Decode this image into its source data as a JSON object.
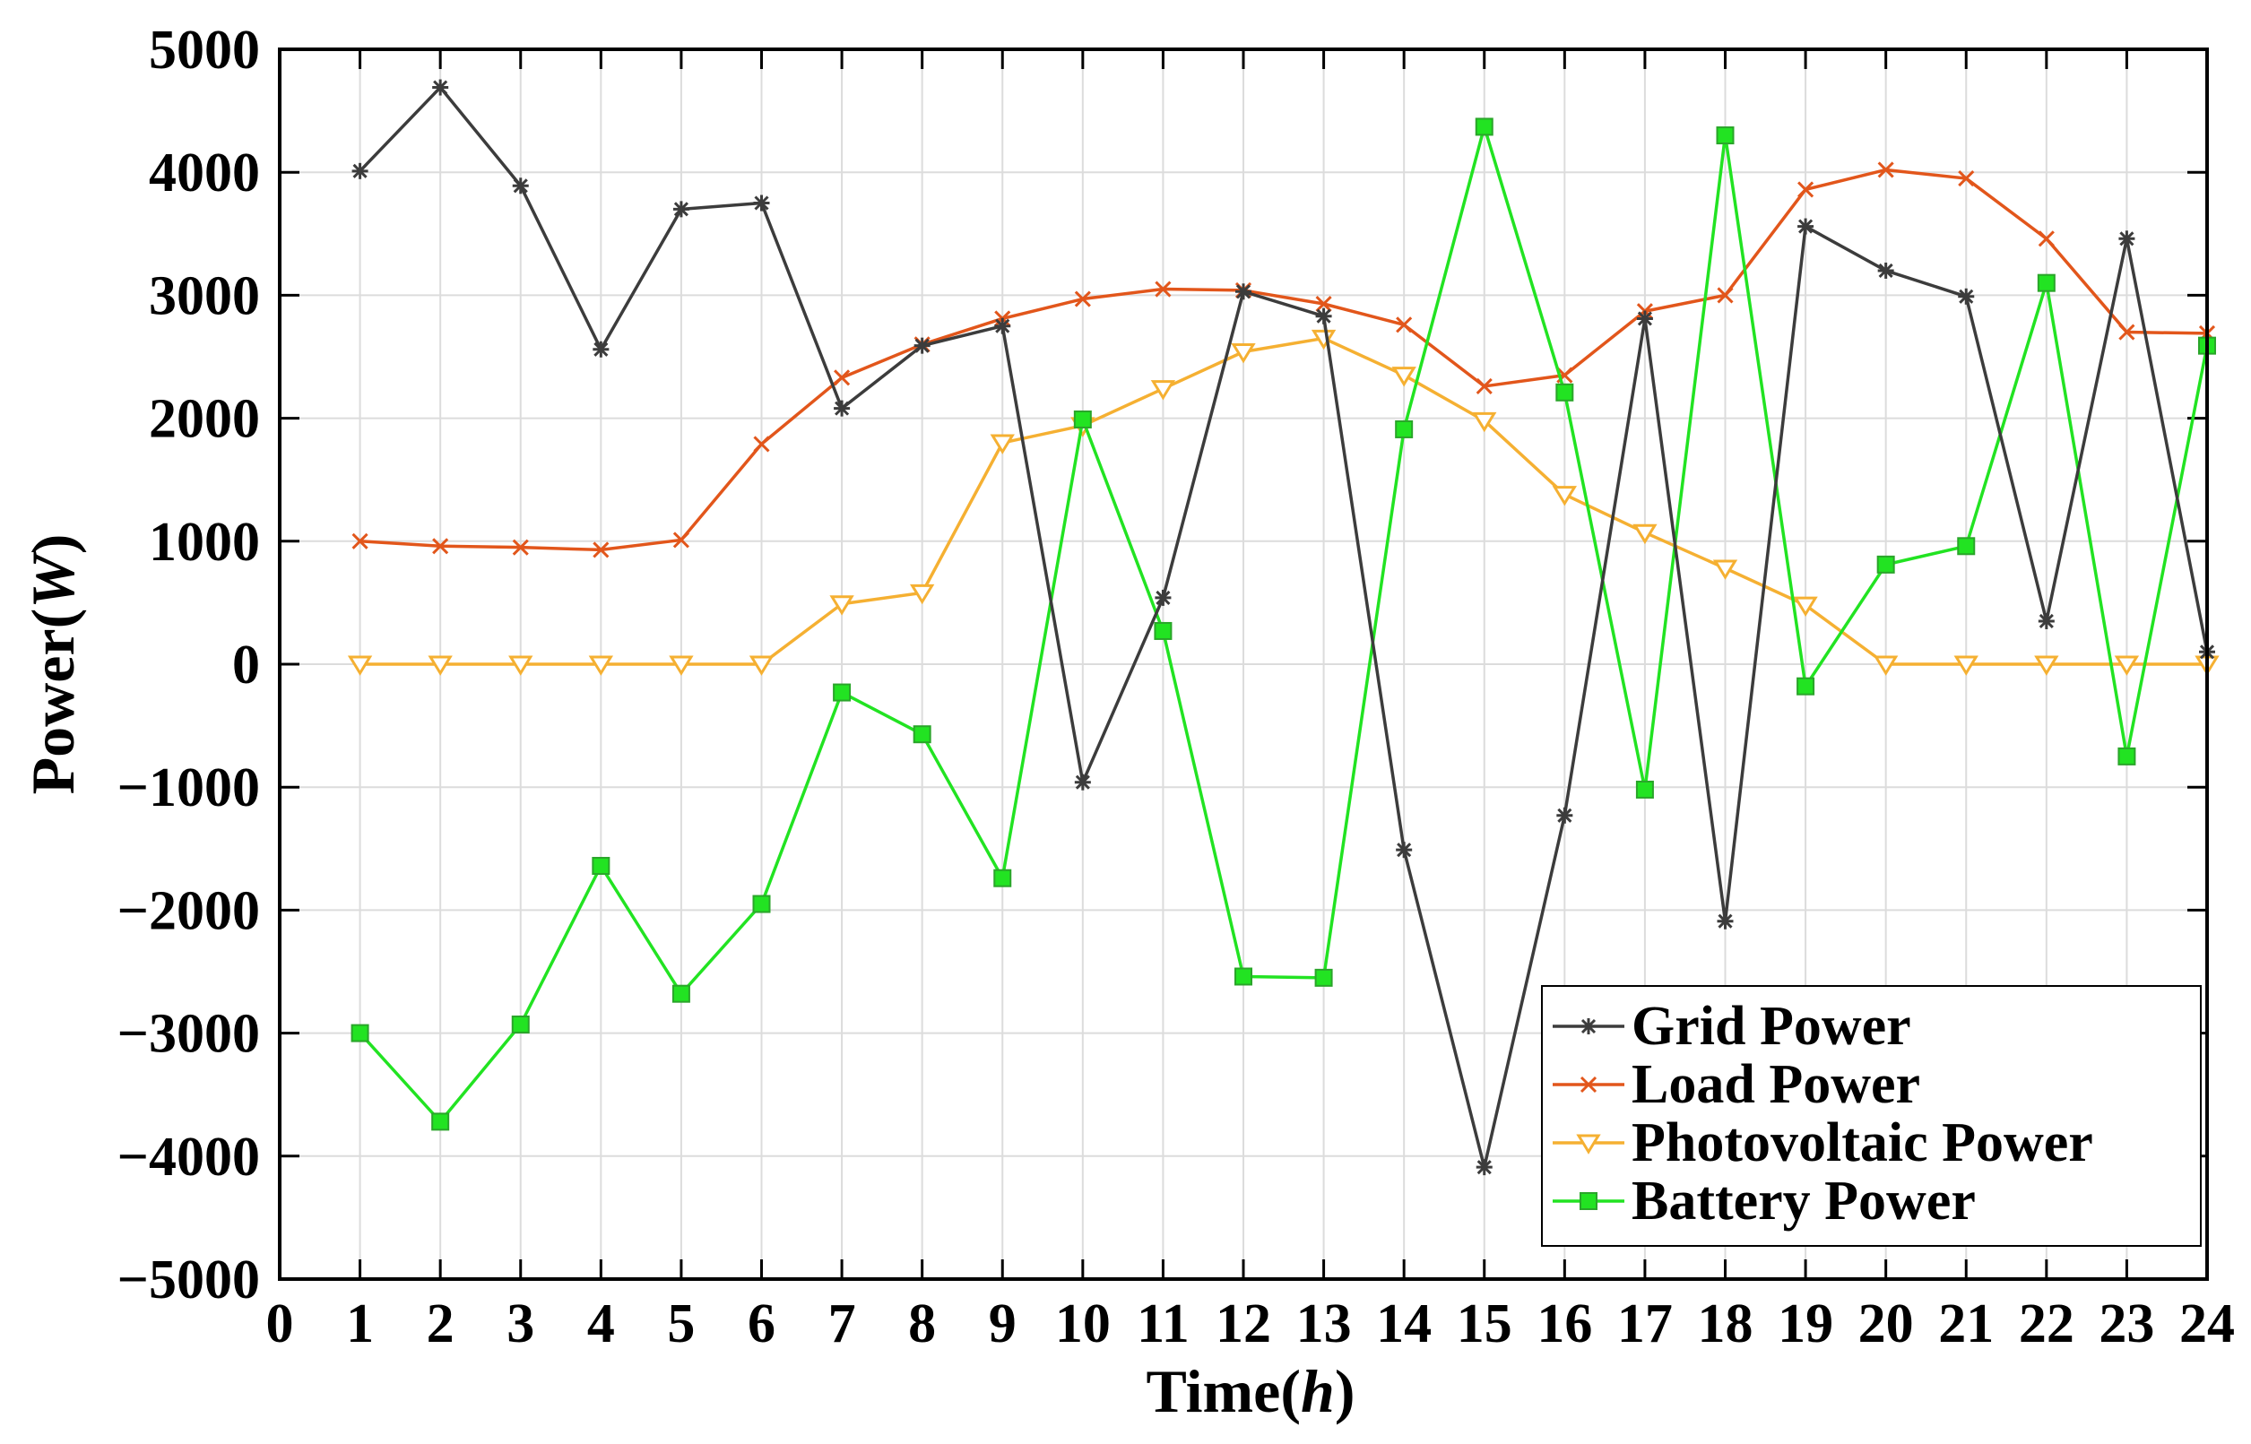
{
  "chart_data": {
    "type": "line",
    "title": "",
    "xlabel": "Time",
    "xlabel_unit": "h",
    "ylabel": "Power",
    "ylabel_unit": "W",
    "xlim": [
      0,
      24
    ],
    "ylim": [
      -5000,
      5000
    ],
    "xticks": [
      "0",
      "1",
      "2",
      "3",
      "4",
      "5",
      "6",
      "7",
      "8",
      "9",
      "10",
      "11",
      "12",
      "13",
      "14",
      "15",
      "16",
      "17",
      "18",
      "19",
      "20",
      "21",
      "22",
      "23",
      "24"
    ],
    "yticks": [
      "5000",
      "4000",
      "3000",
      "2000",
      "1000",
      "0",
      "−1000",
      "−2000",
      "−3000",
      "−4000",
      "−5000"
    ],
    "grid": true,
    "legend_position": "bottom-right",
    "x": [
      1,
      2,
      3,
      4,
      5,
      6,
      7,
      8,
      9,
      10,
      11,
      12,
      13,
      14,
      15,
      16,
      17,
      18,
      19,
      20,
      21,
      22,
      23,
      24
    ],
    "series": [
      {
        "name": "Grid Power",
        "color": "#3c3c3c",
        "marker": "star",
        "values": [
          4010,
          4690,
          3890,
          2560,
          3700,
          3750,
          2080,
          2590,
          2750,
          -960,
          540,
          3030,
          2830,
          -1510,
          -4090,
          -1230,
          2810,
          -2090,
          3560,
          3200,
          2990,
          350,
          3460,
          100
        ]
      },
      {
        "name": "Load Power",
        "color": "#e2561b",
        "marker": "x",
        "values": [
          1000,
          960,
          950,
          930,
          1010,
          1790,
          2330,
          2600,
          2810,
          2970,
          3050,
          3040,
          2930,
          2760,
          2260,
          2350,
          2870,
          3000,
          3860,
          4020,
          3950,
          3460,
          2700,
          2690
        ]
      },
      {
        "name": "Photovoltaic Power",
        "color": "#f5b032",
        "marker": "triangle-down",
        "values": [
          0,
          0,
          0,
          0,
          0,
          0,
          490,
          580,
          1800,
          1940,
          2240,
          2540,
          2650,
          2350,
          1980,
          1380,
          1070,
          780,
          480,
          0,
          0,
          0,
          0,
          0
        ]
      },
      {
        "name": "Battery Power",
        "color": "#22e322",
        "marker": "square",
        "values": [
          -3000,
          -3720,
          -2930,
          -1640,
          -2680,
          -1950,
          -230,
          -570,
          -1740,
          1990,
          270,
          -2540,
          -2550,
          1910,
          4370,
          2210,
          -1020,
          4300,
          -180,
          810,
          960,
          3100,
          -750,
          2590
        ]
      }
    ]
  }
}
